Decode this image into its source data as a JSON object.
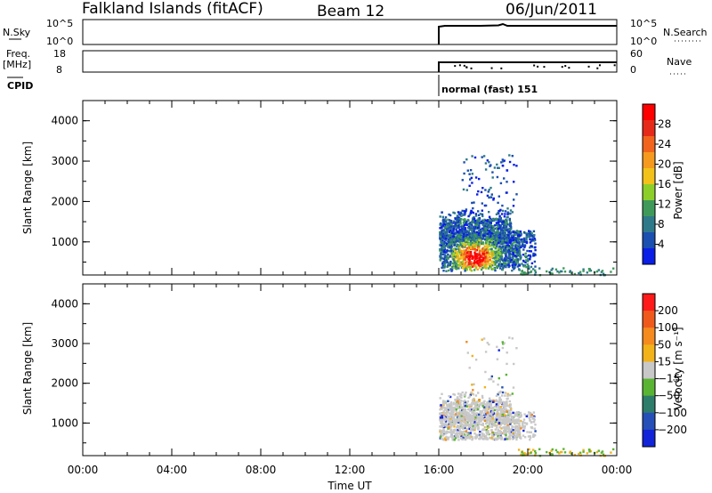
{
  "header": {
    "station": "Falkland Islands (fitACF)",
    "beam": "Beam 12",
    "date": "06/Jun/2011"
  },
  "top_panels": {
    "nsky_label": "N.Sky",
    "nsky_ticks": [
      "10^5",
      "10^0"
    ],
    "nsearch_label": "N.Search",
    "nsearch_ticks": [
      "10^5",
      "10^0"
    ],
    "freq_label_1": "Freq.",
    "freq_label_2": "[MHz]",
    "freq_ticks": [
      "18",
      "8"
    ],
    "nave_label": "Nave",
    "nave_ticks": [
      "60",
      "0"
    ],
    "cpid_label": "CPID",
    "cpid_value": "normal (fast) 151"
  },
  "chart_data": [
    {
      "type": "heatmap",
      "quantity": "power",
      "ylabel": "Slant Range [km]",
      "ylim": [
        180,
        4500
      ],
      "yticks": [
        "1000",
        "2000",
        "3000",
        "4000"
      ],
      "xlabel": "Time UT",
      "xlim": [
        "00:00",
        "24:00"
      ],
      "xticks": [
        "00:00",
        "04:00",
        "08:00",
        "12:00",
        "16:00",
        "20:00",
        "00:00"
      ],
      "data_start": "16:00",
      "colorbar": {
        "label": "Power [dB]",
        "ticks": [
          "4",
          "8",
          "12",
          "16",
          "20",
          "24",
          "28"
        ],
        "colors": [
          "#0a1ee6",
          "#1b4fb0",
          "#2f7a8a",
          "#3f9a5a",
          "#8ccf2a",
          "#f2c21a",
          "#f59a1f",
          "#f2641d",
          "#e62a1a",
          "#ff0000"
        ]
      }
    },
    {
      "type": "heatmap",
      "quantity": "velocity",
      "ylabel": "Slant Range [km]",
      "ylim": [
        180,
        4500
      ],
      "yticks": [
        "1000",
        "2000",
        "3000",
        "4000"
      ],
      "xlabel": "Time UT",
      "xlim": [
        "00:00",
        "24:00"
      ],
      "xticks": [
        "00:00",
        "04:00",
        "08:00",
        "12:00",
        "16:00",
        "20:00",
        "00:00"
      ],
      "data_start": "16:00",
      "colorbar": {
        "label": "Velocity [m s⁻¹]",
        "ticks": [
          "200",
          "100",
          "50",
          "15",
          "−15",
          "−50",
          "−100",
          "−200"
        ],
        "colors": [
          "#1224d8",
          "#2650b8",
          "#2e7d6a",
          "#5ab434",
          "#c8c8c8",
          "#f2b21a",
          "#f58a1f",
          "#ef5a1c",
          "#ff1a1a"
        ]
      }
    }
  ]
}
